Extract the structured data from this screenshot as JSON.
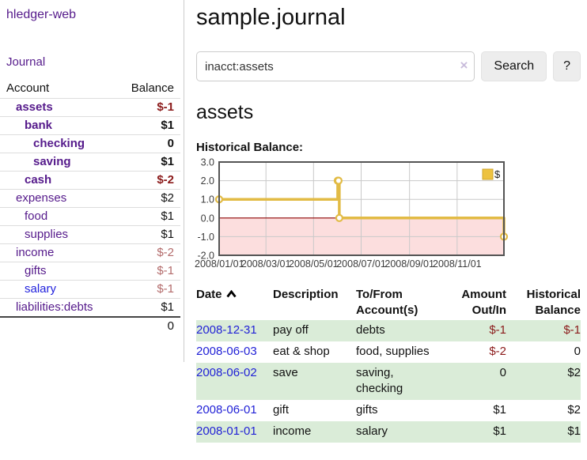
{
  "app": {
    "brand": "hledger-web"
  },
  "sidebar": {
    "journal_link": "Journal",
    "accounts_table": {
      "account_header": "Account",
      "balance_header": "Balance",
      "rows": [
        {
          "name": "assets",
          "indent": 1,
          "bold": true,
          "balance": "$-1",
          "balance_style": "neg-strong",
          "link_color": "purple"
        },
        {
          "name": "bank",
          "indent": 2,
          "bold": true,
          "balance": "$1",
          "balance_style": "pos",
          "link_color": "purple"
        },
        {
          "name": "checking",
          "indent": 3,
          "bold": true,
          "balance": "0",
          "balance_style": "pos",
          "link_color": "purple"
        },
        {
          "name": "saving",
          "indent": 3,
          "bold": true,
          "balance": "$1",
          "balance_style": "pos",
          "link_color": "purple"
        },
        {
          "name": "cash",
          "indent": 2,
          "bold": true,
          "balance": "$-2",
          "balance_style": "neg-strong",
          "link_color": "purple"
        },
        {
          "name": "expenses",
          "indent": 1,
          "bold": false,
          "balance": "$2",
          "balance_style": "pos",
          "link_color": "purple"
        },
        {
          "name": "food",
          "indent": 2,
          "bold": false,
          "balance": "$1",
          "balance_style": "pos",
          "link_color": "purple"
        },
        {
          "name": "supplies",
          "indent": 2,
          "bold": false,
          "balance": "$1",
          "balance_style": "pos",
          "link_color": "purple"
        },
        {
          "name": "income",
          "indent": 1,
          "bold": false,
          "balance": "$-2",
          "balance_style": "neg-muted",
          "link_color": "purple"
        },
        {
          "name": "gifts",
          "indent": 2,
          "bold": false,
          "balance": "$-1",
          "balance_style": "neg-muted",
          "link_color": "purple"
        },
        {
          "name": "salary",
          "indent": 2,
          "bold": false,
          "balance": "$-1",
          "balance_style": "neg-muted",
          "link_color": "blue"
        },
        {
          "name": "liabilities:debts",
          "indent": 1,
          "bold": false,
          "balance": "$1",
          "balance_style": "pos",
          "link_color": "purple"
        }
      ],
      "total": "0"
    }
  },
  "header": {
    "title": "sample.journal"
  },
  "search": {
    "value": "inacct:assets",
    "clear_glyph": "×",
    "search_label": "Search",
    "help_label": "?"
  },
  "account_page": {
    "heading": "assets",
    "chart_label": "Historical Balance:"
  },
  "chart_data": {
    "type": "line",
    "step": true,
    "title": "Historical Balance:",
    "series": [
      {
        "name": "$",
        "color": "#e2bb45",
        "points": [
          [
            "2008/01/01",
            1.0
          ],
          [
            "2008/06/01",
            2.0
          ],
          [
            "2008/06/02",
            2.0
          ],
          [
            "2008/06/03",
            0.0
          ],
          [
            "2008/12/31",
            -1.0
          ]
        ]
      }
    ],
    "ylim": [
      -2.0,
      3.0
    ],
    "yticks": [
      "3.0",
      "2.0",
      "1.0",
      "0.0",
      "-1.0",
      "-2.0"
    ],
    "ytick_values": [
      3,
      2,
      1,
      0,
      -1,
      -2
    ],
    "xticks": [
      "2008/01/01",
      "2008/03/01",
      "2008/05/01",
      "2008/07/01",
      "2008/09/01",
      "2008/11/01"
    ],
    "legend_position": "top-right",
    "legend_label": "$",
    "grid": true,
    "colors": {
      "grid": "#c9c9c9",
      "border": "#545454",
      "negative_region": "#fcdede",
      "zero_line": "#8b0000",
      "marker_fill": "#ffffff",
      "tick_text": "#3c3c3c",
      "legend_fill": "#edc240",
      "legend_border": "#cfa52e"
    }
  },
  "transactions": {
    "headers": {
      "date": "Date",
      "description": "Description",
      "tofrom": "To/From Account(s)",
      "amount": "Amount Out/In",
      "balance": "Historical Balance"
    },
    "sort_icon": "chevron-up-icon",
    "rows": [
      {
        "date": "2008-12-31",
        "description": "pay off",
        "accounts": "debts",
        "amount": "$-1",
        "amount_neg": true,
        "balance": "$-1",
        "balance_neg": true,
        "shaded": true
      },
      {
        "date": "2008-06-03",
        "description": "eat & shop",
        "accounts": "food, supplies",
        "amount": "$-2",
        "amount_neg": true,
        "balance": "0",
        "balance_neg": false,
        "shaded": false
      },
      {
        "date": "2008-06-02",
        "description": "save",
        "accounts": "saving, checking",
        "amount": "0",
        "amount_neg": false,
        "balance": "$2",
        "balance_neg": false,
        "shaded": true
      },
      {
        "date": "2008-06-01",
        "description": "gift",
        "accounts": "gifts",
        "amount": "$1",
        "amount_neg": false,
        "balance": "$2",
        "balance_neg": false,
        "shaded": false
      },
      {
        "date": "2008-01-01",
        "description": "income",
        "accounts": "salary",
        "amount": "$1",
        "amount_neg": false,
        "balance": "$1",
        "balance_neg": false,
        "shaded": true
      }
    ]
  }
}
